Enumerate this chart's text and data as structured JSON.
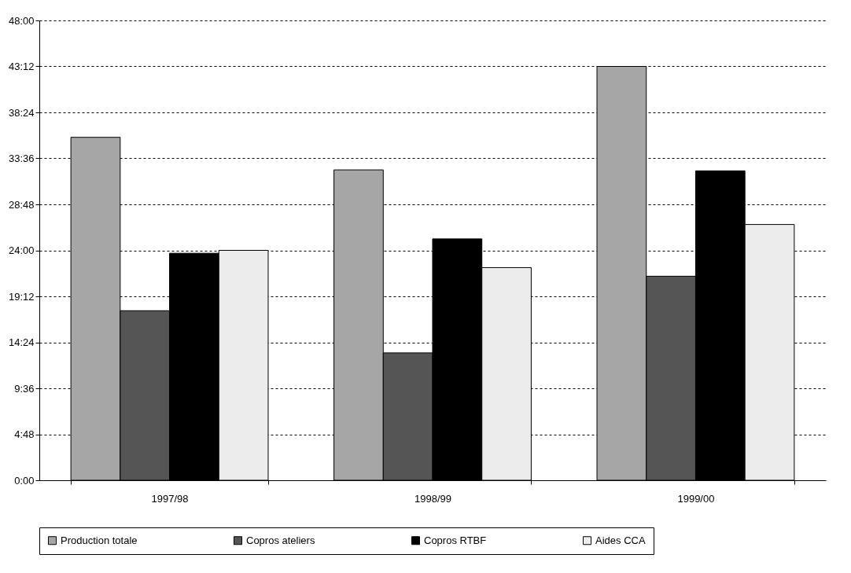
{
  "chart_data": {
    "type": "bar",
    "categories": [
      "1997/98",
      "1998/99",
      "1999/00"
    ],
    "series": [
      {
        "name": "Production totale",
        "color": "#a6a6a6",
        "values": [
          35.8,
          32.4,
          43.2
        ]
      },
      {
        "name": "Copros ateliers",
        "color": "#555555",
        "values": [
          17.7,
          13.3,
          21.3
        ]
      },
      {
        "name": "Copros RTBF",
        "color": "#000000",
        "values": [
          23.7,
          25.2,
          32.3
        ]
      },
      {
        "name": "Aides CCA",
        "color": "#ececec",
        "values": [
          24.0,
          22.2,
          26.7
        ]
      }
    ],
    "ylim": [
      0,
      48
    ],
    "yticks": [
      {
        "value": 0,
        "label": "0:00"
      },
      {
        "value": 4.8,
        "label": "4:48"
      },
      {
        "value": 9.6,
        "label": "9:36"
      },
      {
        "value": 14.4,
        "label": "14:24"
      },
      {
        "value": 19.2,
        "label": "19:12"
      },
      {
        "value": 24,
        "label": "24:00"
      },
      {
        "value": 28.8,
        "label": "28:48"
      },
      {
        "value": 33.6,
        "label": "33:36"
      },
      {
        "value": 38.4,
        "label": "38:24"
      },
      {
        "value": 43.2,
        "label": "43:12"
      },
      {
        "value": 48,
        "label": "48:00"
      }
    ],
    "grid": "y",
    "legend": "bottom"
  }
}
